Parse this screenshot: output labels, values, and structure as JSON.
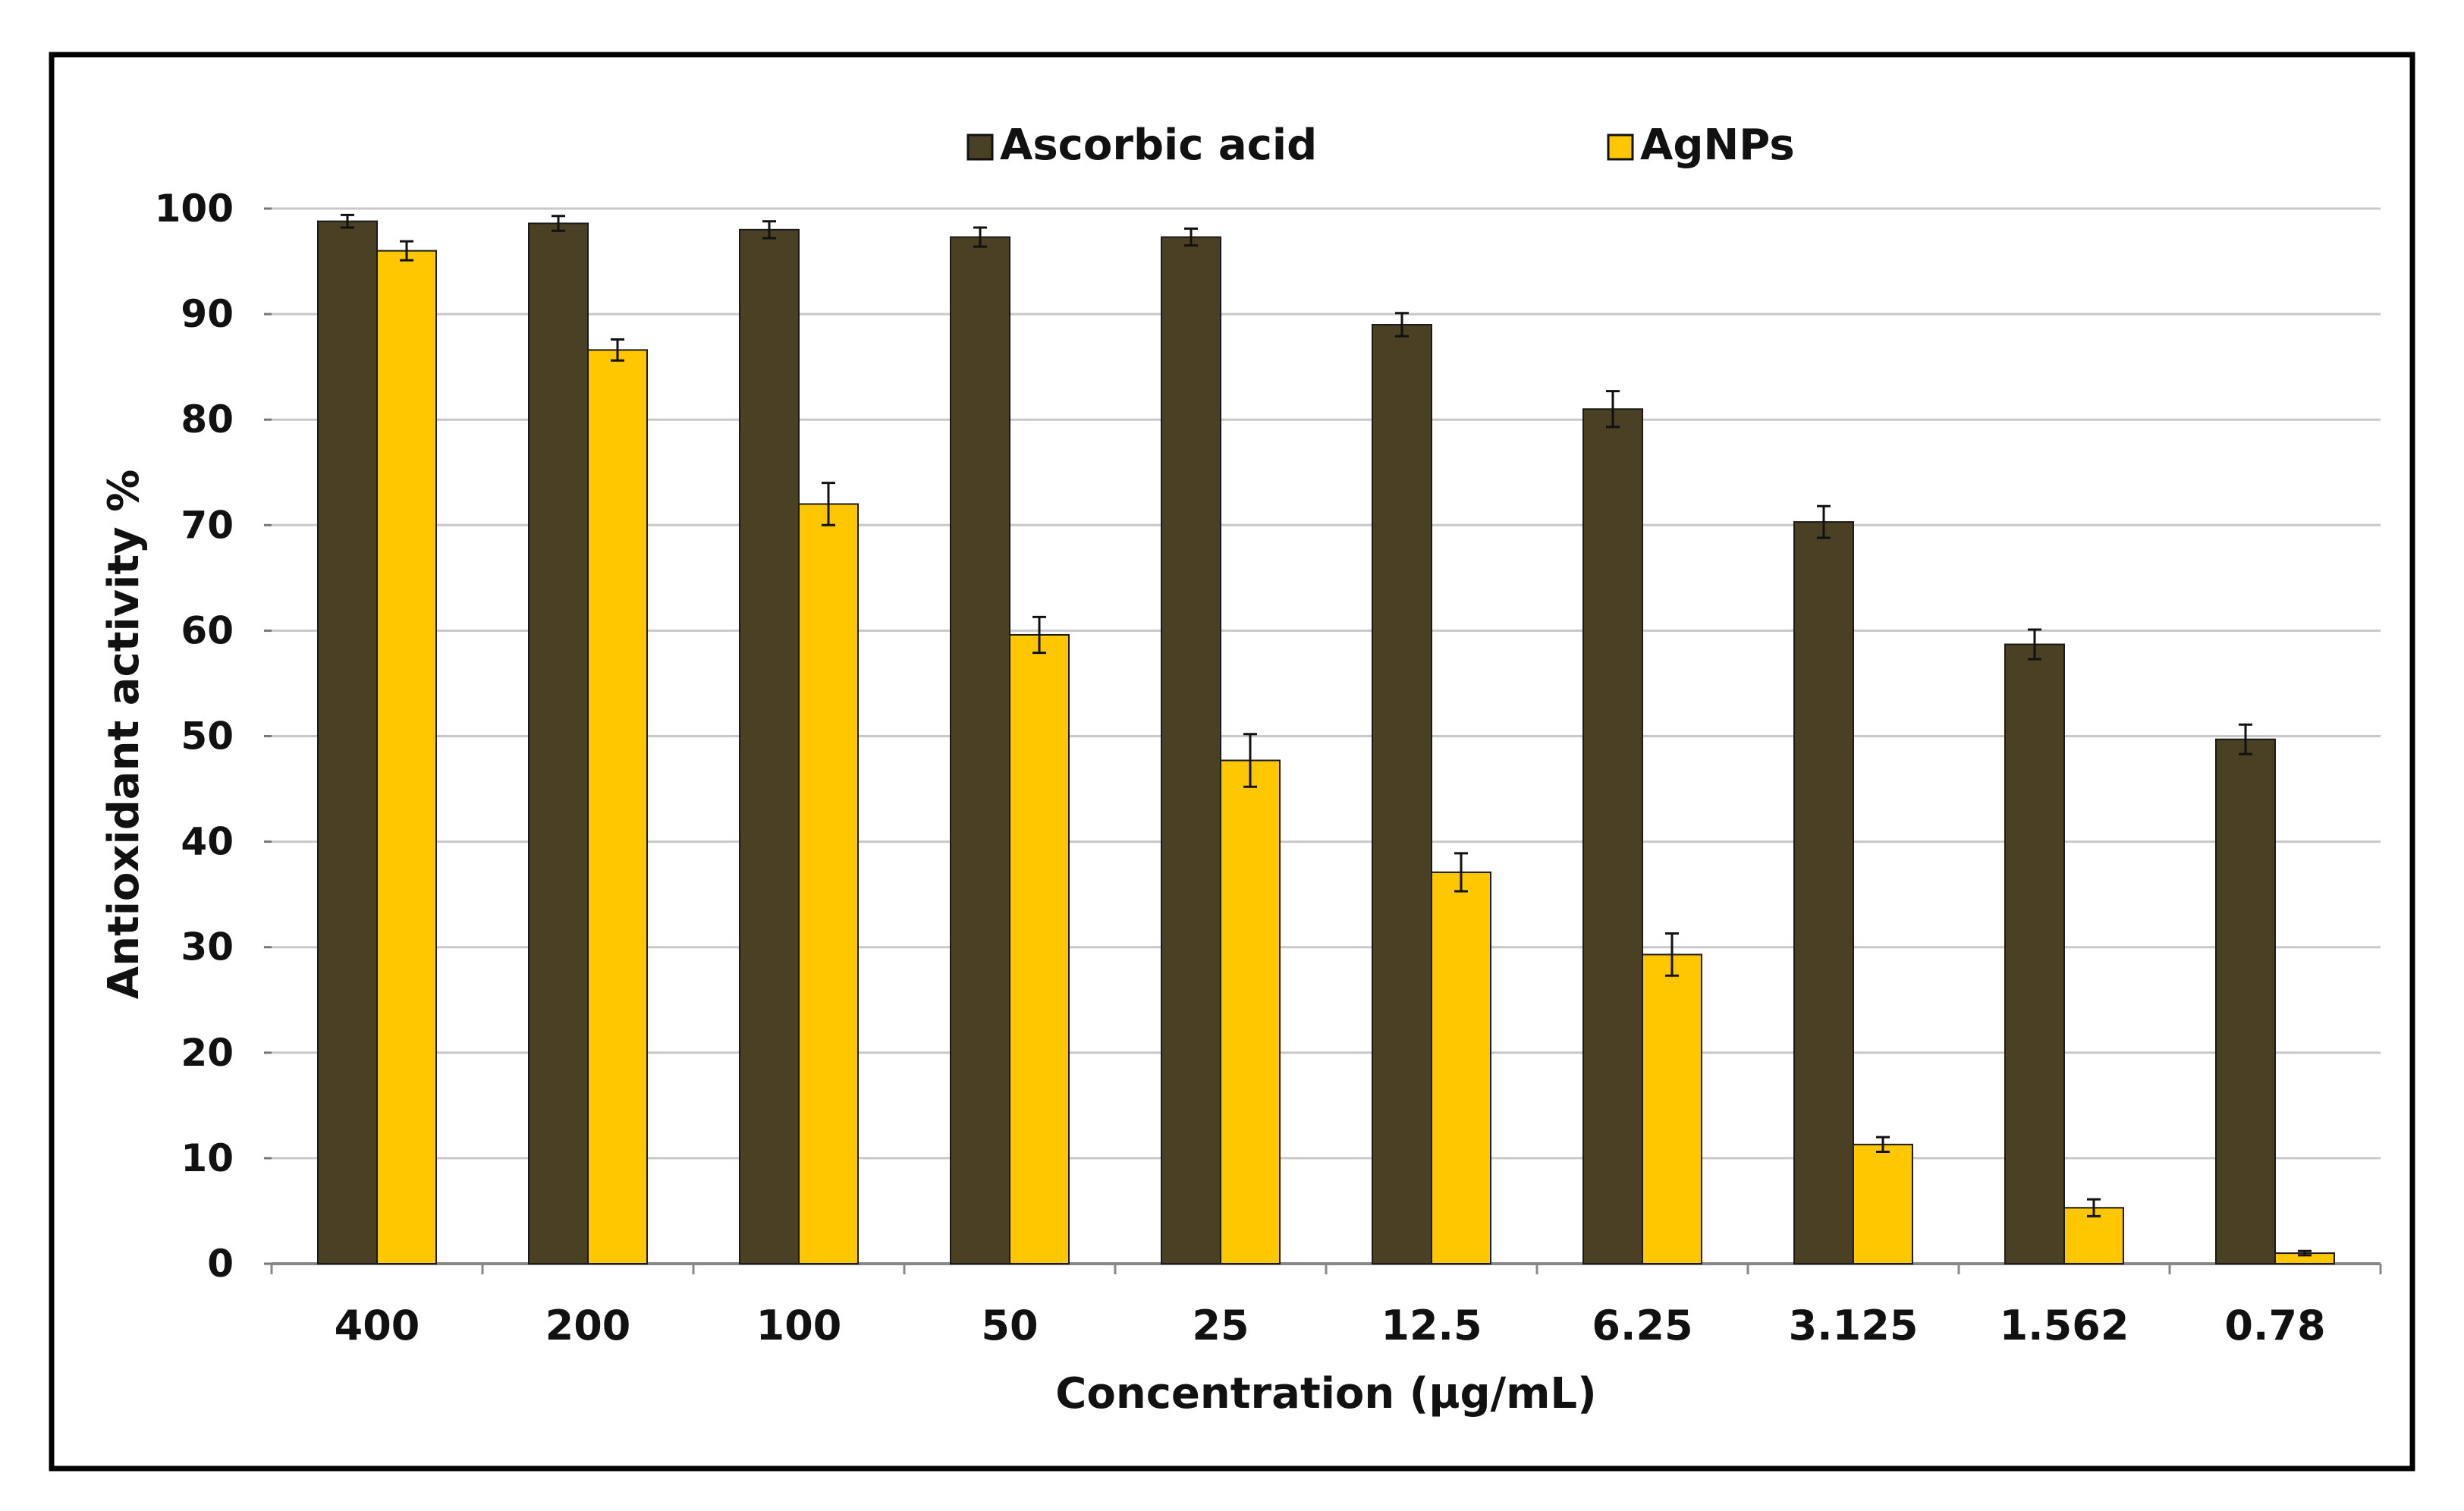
{
  "chart_data": {
    "type": "bar",
    "title": "",
    "xlabel": "Concentration (µg/mL)",
    "ylabel": "Antioxidant activity %",
    "ylim": [
      0,
      100
    ],
    "yticks": [
      0,
      10,
      20,
      30,
      40,
      50,
      60,
      70,
      80,
      90,
      100
    ],
    "grid": "horizontal",
    "legend_position": "top-center",
    "categories": [
      "400",
      "200",
      "100",
      "50",
      "25",
      "12.5",
      "6.25",
      "3.125",
      "1.562",
      "0.78"
    ],
    "series": [
      {
        "name": "Ascorbic acid",
        "color": "#4a4024",
        "values": [
          98.8,
          98.6,
          98.0,
          97.3,
          97.3,
          89.0,
          81.0,
          70.3,
          58.7,
          49.7
        ],
        "errors": [
          0.6,
          0.7,
          0.8,
          0.9,
          0.8,
          1.1,
          1.7,
          1.5,
          1.4,
          1.4
        ]
      },
      {
        "name": "AgNPs",
        "color": "#ffc700",
        "values": [
          96.0,
          86.6,
          72.0,
          59.6,
          47.7,
          37.1,
          29.3,
          11.3,
          5.3,
          1.0
        ],
        "errors": [
          0.9,
          1.0,
          2.0,
          1.7,
          2.5,
          1.8,
          2.0,
          0.7,
          0.8,
          0.2
        ]
      }
    ]
  }
}
